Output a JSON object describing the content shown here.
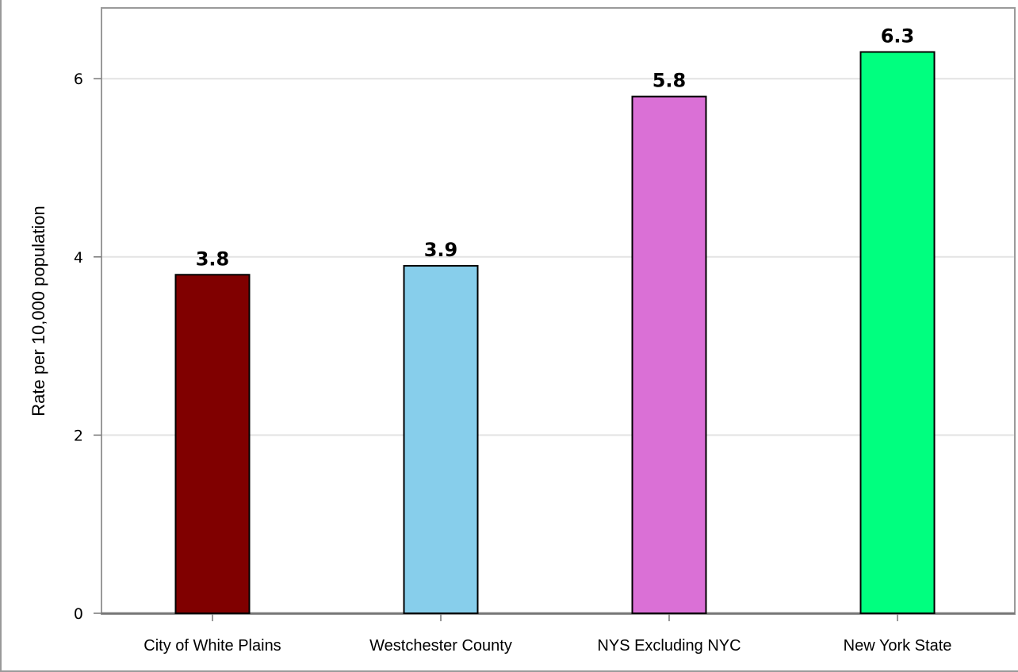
{
  "chart_data": {
    "type": "bar",
    "title": "",
    "xlabel": "",
    "ylabel": "Rate per 10,000 population",
    "ylim": [
      0,
      6.7
    ],
    "yticks": [
      0,
      2,
      4,
      6
    ],
    "grid": true,
    "categories": [
      "City of White Plains",
      "Westchester County",
      "NYS Excluding NYC",
      "New York State"
    ],
    "values": [
      3.8,
      3.9,
      5.8,
      6.3
    ],
    "data_labels": [
      "3.8",
      "3.9",
      "5.8",
      "6.3"
    ],
    "colors": [
      "#800000",
      "#87ceeb",
      "#da70d6",
      "#00ff7f"
    ]
  }
}
